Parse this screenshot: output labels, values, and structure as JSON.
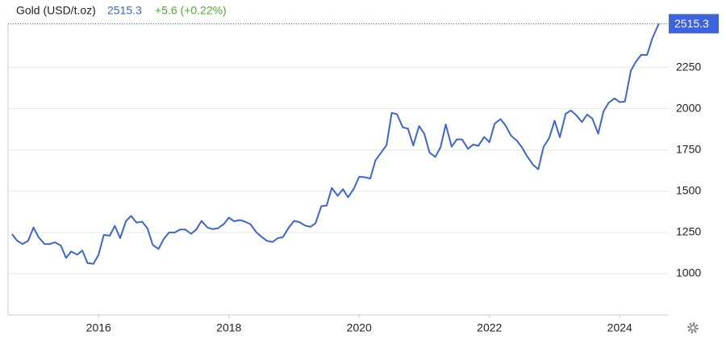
{
  "chart_data": {
    "type": "line",
    "title": "Gold (USD/t.oz)",
    "last": 2515.3,
    "change": "+5.6 (+0.22%)",
    "x": [
      2014.67,
      2014.75,
      2014.83,
      2014.92,
      2015,
      2015.08,
      2015.17,
      2015.25,
      2015.33,
      2015.42,
      2015.5,
      2015.58,
      2015.67,
      2015.75,
      2015.83,
      2015.92,
      2016,
      2016.08,
      2016.17,
      2016.25,
      2016.33,
      2016.42,
      2016.5,
      2016.58,
      2016.67,
      2016.75,
      2016.83,
      2016.92,
      2017,
      2017.08,
      2017.17,
      2017.25,
      2017.33,
      2017.42,
      2017.5,
      2017.58,
      2017.67,
      2017.75,
      2017.83,
      2017.92,
      2018,
      2018.08,
      2018.17,
      2018.25,
      2018.33,
      2018.42,
      2018.5,
      2018.58,
      2018.67,
      2018.75,
      2018.83,
      2018.92,
      2019,
      2019.08,
      2019.17,
      2019.25,
      2019.33,
      2019.42,
      2019.5,
      2019.58,
      2019.67,
      2019.75,
      2019.83,
      2019.92,
      2020,
      2020.08,
      2020.17,
      2020.25,
      2020.33,
      2020.42,
      2020.5,
      2020.58,
      2020.67,
      2020.75,
      2020.83,
      2020.92,
      2021,
      2021.08,
      2021.17,
      2021.25,
      2021.33,
      2021.42,
      2021.5,
      2021.58,
      2021.67,
      2021.75,
      2021.83,
      2021.92,
      2022,
      2022.08,
      2022.17,
      2022.25,
      2022.33,
      2022.42,
      2022.5,
      2022.58,
      2022.67,
      2022.75,
      2022.83,
      2022.92,
      2023,
      2023.08,
      2023.17,
      2023.25,
      2023.33,
      2023.42,
      2023.5,
      2023.58,
      2023.67,
      2023.75,
      2023.83,
      2023.92,
      2024,
      2024.08,
      2024.17,
      2024.25,
      2024.33,
      2024.42,
      2024.5,
      2024.6
    ],
    "values": [
      1240,
      1200,
      1180,
      1200,
      1280,
      1220,
      1180,
      1180,
      1190,
      1170,
      1095,
      1135,
      1115,
      1140,
      1065,
      1060,
      1115,
      1235,
      1230,
      1290,
      1215,
      1320,
      1350,
      1310,
      1315,
      1275,
      1175,
      1150,
      1210,
      1250,
      1250,
      1268,
      1268,
      1242,
      1268,
      1320,
      1280,
      1270,
      1275,
      1300,
      1340,
      1318,
      1325,
      1315,
      1300,
      1252,
      1224,
      1200,
      1192,
      1215,
      1222,
      1280,
      1320,
      1313,
      1292,
      1284,
      1305,
      1410,
      1413,
      1520,
      1472,
      1512,
      1463,
      1517,
      1587,
      1585,
      1577,
      1687,
      1730,
      1780,
      1975,
      1967,
      1887,
      1879,
      1777,
      1895,
      1848,
      1734,
      1708,
      1768,
      1905,
      1770,
      1814,
      1814,
      1757,
      1783,
      1775,
      1829,
      1797,
      1909,
      1937,
      1897,
      1837,
      1807,
      1766,
      1711,
      1660,
      1633,
      1768,
      1824,
      1928,
      1827,
      1969,
      1990,
      1962,
      1919,
      1965,
      1940,
      1849,
      1983,
      2036,
      2063,
      2040,
      2044,
      2230,
      2286,
      2327,
      2326,
      2426,
      2515.3
    ],
    "color": "#3d63dd",
    "xlim": [
      2014.61,
      2024.74
    ],
    "xticks": [
      2016,
      2018,
      2020,
      2022,
      2024
    ],
    "ylim": [
      750,
      2620
    ],
    "yticks": [
      1000,
      1250,
      1500,
      1750,
      2000,
      2250
    ],
    "grid": true
  }
}
